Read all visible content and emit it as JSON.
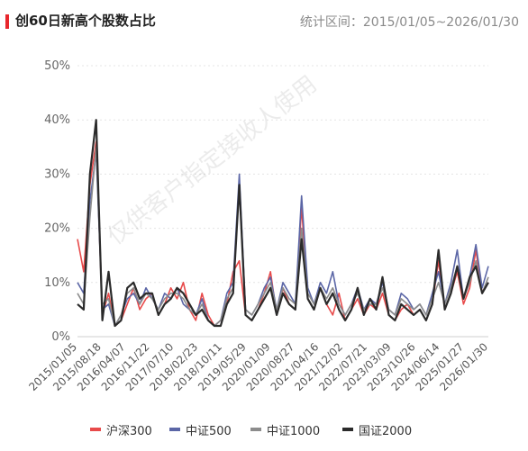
{
  "header": {
    "title": "创60日新高个股数占比",
    "range": "统计区间：2015/01/05~2026/01/30"
  },
  "watermark": "仅供客户指定接收人使用",
  "colors": {
    "accent": "#e8262c",
    "hs300": "#e84a4a",
    "zz500": "#5b66a6",
    "zz1000": "#8c8c8c",
    "gz2000": "#2b2b2b"
  },
  "chart_data": {
    "type": "line",
    "ylim": [
      0,
      50
    ],
    "yticks": [
      "0%",
      "10%",
      "20%",
      "30%",
      "40%",
      "50%"
    ],
    "x_labels": [
      "2015/01/05",
      "2015/08/18",
      "2016/04/07",
      "2016/11/22",
      "2017/07/10",
      "2018/02/23",
      "2018/10/11",
      "2019/05/29",
      "2020/01/09",
      "2020/08/27",
      "2021/04/16",
      "2021/12/02",
      "2022/07/21",
      "2023/03/09",
      "2023/10/26",
      "2024/06/14",
      "2025/01/27",
      "2026/01/30"
    ],
    "x": [
      "2015/01",
      "2015/03",
      "2015/05",
      "2015/07",
      "2015/09",
      "2015/11",
      "2016/01",
      "2016/03",
      "2016/05",
      "2016/07",
      "2016/09",
      "2016/11",
      "2017/01",
      "2017/03",
      "2017/05",
      "2017/07",
      "2017/09",
      "2017/11",
      "2018/01",
      "2018/03",
      "2018/05",
      "2018/07",
      "2018/09",
      "2018/11",
      "2019/01",
      "2019/03",
      "2019/05",
      "2019/07",
      "2019/09",
      "2019/11",
      "2020/01",
      "2020/03",
      "2020/05",
      "2020/07",
      "2020/09",
      "2020/11",
      "2021/01",
      "2021/03",
      "2021/05",
      "2021/07",
      "2021/09",
      "2021/11",
      "2022/01",
      "2022/03",
      "2022/05",
      "2022/07",
      "2022/09",
      "2022/11",
      "2023/01",
      "2023/03",
      "2023/05",
      "2023/07",
      "2023/09",
      "2023/11",
      "2024/01",
      "2024/03",
      "2024/05",
      "2024/07",
      "2024/09",
      "2024/11",
      "2025/01",
      "2025/03",
      "2025/05",
      "2025/07",
      "2025/09",
      "2025/11",
      "2026/01"
    ],
    "series": [
      {
        "name": "沪深300",
        "color": "#e84a4a",
        "values": [
          18,
          12,
          28,
          36,
          4,
          8,
          2,
          3,
          6,
          9,
          5,
          7,
          8,
          4,
          6,
          9,
          7,
          10,
          5,
          3,
          8,
          4,
          2,
          3,
          6,
          12,
          14,
          4,
          3,
          5,
          8,
          12,
          4,
          9,
          6,
          5,
          24,
          7,
          5,
          9,
          6,
          4,
          8,
          3,
          5,
          7,
          4,
          6,
          5,
          8,
          4,
          3,
          5,
          6,
          4,
          5,
          3,
          6,
          14,
          5,
          8,
          12,
          6,
          9,
          16,
          8,
          10
        ]
      },
      {
        "name": "中证500",
        "color": "#5b66a6",
        "values": [
          10,
          8,
          25,
          34,
          5,
          6,
          2,
          4,
          7,
          8,
          6,
          9,
          7,
          5,
          8,
          7,
          9,
          6,
          5,
          4,
          7,
          3,
          2,
          3,
          8,
          10,
          30,
          5,
          4,
          6,
          9,
          11,
          5,
          10,
          8,
          6,
          26,
          9,
          6,
          10,
          8,
          12,
          6,
          4,
          6,
          9,
          5,
          7,
          6,
          10,
          5,
          4,
          8,
          7,
          5,
          6,
          4,
          8,
          12,
          6,
          10,
          16,
          7,
          11,
          17,
          9,
          13
        ]
      },
      {
        "name": "中证1000",
        "color": "#8c8c8c",
        "values": [
          8,
          6,
          22,
          35,
          6,
          7,
          2,
          4,
          8,
          9,
          6,
          8,
          7,
          5,
          7,
          8,
          8,
          7,
          5,
          4,
          6,
          3,
          2,
          3,
          7,
          9,
          28,
          5,
          4,
          6,
          8,
          10,
          5,
          9,
          7,
          6,
          20,
          8,
          6,
          9,
          7,
          9,
          6,
          4,
          6,
          8,
          5,
          6,
          6,
          9,
          5,
          4,
          7,
          6,
          5,
          6,
          4,
          7,
          10,
          6,
          9,
          13,
          7,
          10,
          14,
          8,
          11
        ]
      },
      {
        "name": "国证2000",
        "color": "#2b2b2b",
        "values": [
          6,
          5,
          30,
          40,
          3,
          12,
          2,
          3,
          9,
          10,
          7,
          8,
          8,
          4,
          6,
          7,
          9,
          8,
          6,
          4,
          5,
          3,
          2,
          2,
          6,
          8,
          28,
          4,
          3,
          5,
          7,
          9,
          4,
          8,
          6,
          5,
          18,
          7,
          5,
          9,
          6,
          8,
          5,
          3,
          5,
          9,
          4,
          7,
          5,
          11,
          4,
          3,
          6,
          5,
          4,
          5,
          3,
          6,
          16,
          5,
          8,
          13,
          7,
          11,
          13,
          8,
          10
        ]
      }
    ]
  }
}
